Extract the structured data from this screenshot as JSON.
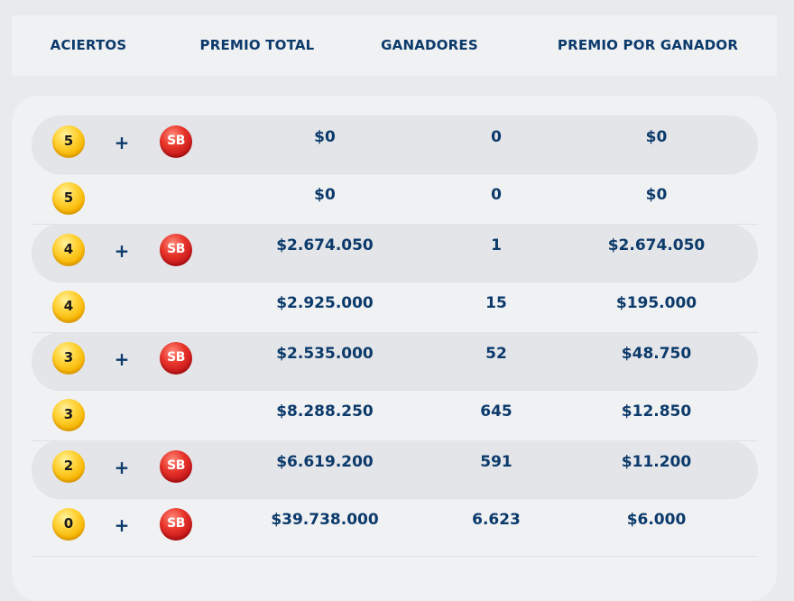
{
  "header": {
    "aciertos": "ACIERTOS",
    "premio_total": "PREMIO TOTAL",
    "ganadores": "GANADORES",
    "premio_por_ganador": "PREMIO POR GANADOR"
  },
  "rows": [
    {
      "ball": "5",
      "plus": "+",
      "sb": "SB",
      "premio_total": "$0",
      "ganadores": "0",
      "premio_por_ganador": "$0"
    },
    {
      "ball": "5",
      "premio_total": "$0",
      "ganadores": "0",
      "premio_por_ganador": "$0"
    },
    {
      "ball": "4",
      "plus": "+",
      "sb": "SB",
      "premio_total": "$2.674.050",
      "ganadores": "1",
      "premio_por_ganador": "$2.674.050"
    },
    {
      "ball": "4",
      "premio_total": "$2.925.000",
      "ganadores": "15",
      "premio_por_ganador": "$195.000"
    },
    {
      "ball": "3",
      "plus": "+",
      "sb": "SB",
      "premio_total": "$2.535.000",
      "ganadores": "52",
      "premio_por_ganador": "$48.750"
    },
    {
      "ball": "3",
      "premio_total": "$8.288.250",
      "ganadores": "645",
      "premio_por_ganador": "$12.850"
    },
    {
      "ball": "2",
      "plus": "+",
      "sb": "SB",
      "premio_total": "$6.619.200",
      "ganadores": "591",
      "premio_por_ganador": "$11.200"
    },
    {
      "ball": "0",
      "plus": "+",
      "sb": "SB",
      "premio_total": "$39.738.000",
      "ganadores": "6.623",
      "premio_por_ganador": "$6.000"
    }
  ],
  "colors": {
    "text": "#0b3a6b",
    "gold_ball": "#f6b400",
    "red_ball": "#c2151a",
    "row_shade": "#e4e5e8",
    "panel": "#f0f1f3"
  }
}
